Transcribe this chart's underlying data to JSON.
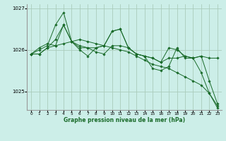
{
  "background_color": "#cceee8",
  "grid_color": "#aaccbb",
  "line_color": "#1a6b2a",
  "marker_color": "#1a6b2a",
  "xlabel": "Graphe pression niveau de la mer (hPa)",
  "ylim": [
    1024.55,
    1027.1
  ],
  "yticks": [
    1025,
    1026,
    1027
  ],
  "xlim": [
    -0.5,
    23.5
  ],
  "xticks": [
    0,
    1,
    2,
    3,
    4,
    5,
    6,
    7,
    8,
    9,
    10,
    11,
    12,
    13,
    14,
    15,
    16,
    17,
    18,
    19,
    20,
    21,
    22,
    23
  ],
  "series": [
    [
      1025.9,
      1025.9,
      1026.05,
      1026.1,
      1026.15,
      1026.2,
      1026.25,
      1026.2,
      1026.15,
      1026.1,
      1026.05,
      1026.0,
      1025.95,
      1025.85,
      1025.75,
      1025.65,
      1025.6,
      1025.55,
      1025.45,
      1025.35,
      1025.25,
      1025.15,
      1024.95,
      1024.65
    ],
    [
      1025.9,
      1025.9,
      1026.05,
      1026.25,
      1026.6,
      1026.2,
      1026.1,
      1026.05,
      1025.95,
      1025.9,
      1026.1,
      1026.1,
      1026.05,
      1025.9,
      1025.85,
      1025.8,
      1025.7,
      1025.8,
      1025.8,
      1025.85,
      1025.8,
      1025.85,
      1025.25,
      1024.7
    ],
    [
      1025.9,
      1026.0,
      1026.1,
      1026.6,
      1026.9,
      1026.2,
      1026.0,
      1025.85,
      1026.05,
      1026.1,
      1026.45,
      1026.5,
      1026.05,
      1025.9,
      1025.85,
      1025.55,
      1025.5,
      1025.6,
      1026.05,
      1025.8,
      1025.8,
      1025.45,
      1024.95,
      1024.6
    ],
    [
      1025.9,
      1026.05,
      1026.15,
      1026.1,
      1026.6,
      1026.2,
      1026.05,
      1026.05,
      1026.05,
      1026.1,
      1026.45,
      1026.5,
      1026.05,
      1025.9,
      1025.85,
      1025.8,
      1025.7,
      1026.05,
      1026.0,
      1025.85,
      1025.8,
      1025.85,
      1025.8,
      1025.8
    ]
  ]
}
